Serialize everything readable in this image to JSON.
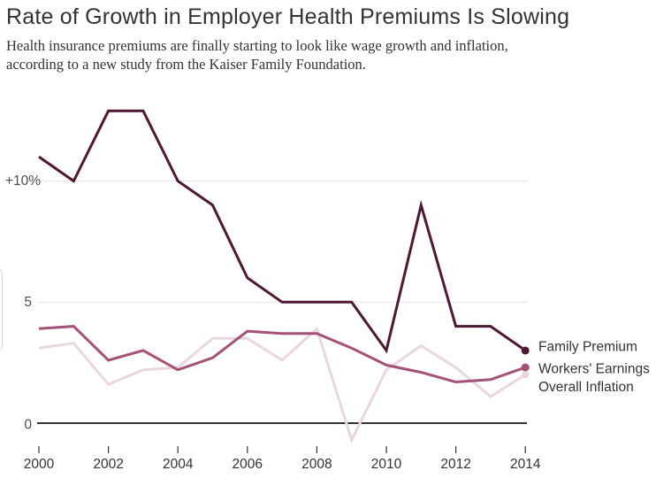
{
  "header": {
    "title": "Rate of Growth in Employer Health Premiums Is Slowing",
    "subtitle_line1": "Health insurance premiums are finally starting to look like wage growth and inflation,",
    "subtitle_line2": "according to a new study from the Kaiser Family Foundation."
  },
  "chart_data": {
    "type": "line",
    "title": "Rate of Growth in Employer Health Premiums Is Slowing",
    "x": [
      2000,
      2001,
      2002,
      2003,
      2004,
      2005,
      2006,
      2007,
      2008,
      2009,
      2010,
      2011,
      2012,
      2013,
      2014
    ],
    "series": [
      {
        "name": "Family Premium",
        "color": "#4e1733",
        "end_dot": true,
        "values": [
          11.0,
          10.0,
          12.9,
          12.9,
          10.0,
          9.0,
          6.0,
          5.0,
          5.0,
          5.0,
          3.0,
          9.0,
          4.0,
          4.0,
          3.0
        ]
      },
      {
        "name": "Workers' Earnings",
        "color": "#a65177",
        "end_dot": true,
        "values": [
          3.9,
          4.0,
          2.6,
          3.0,
          2.2,
          2.7,
          3.8,
          3.7,
          3.7,
          3.1,
          2.4,
          2.1,
          1.7,
          1.8,
          2.3
        ]
      },
      {
        "name": "Overall Inflation",
        "color": "#e9d6de",
        "end_dot": true,
        "values": [
          3.1,
          3.3,
          1.6,
          2.2,
          2.3,
          3.5,
          3.5,
          2.6,
          3.9,
          -0.7,
          2.2,
          3.2,
          2.3,
          1.1,
          2.0
        ]
      }
    ],
    "y_ticks": [
      {
        "value": 0,
        "label": "0"
      },
      {
        "value": 5,
        "label": "5"
      },
      {
        "value": 10,
        "label": "+10%"
      }
    ],
    "x_tick_labels": [
      "2000",
      "2002",
      "2004",
      "2006",
      "2008",
      "2010",
      "2012",
      "2014"
    ],
    "ylim": [
      -1,
      13.5
    ],
    "xlabel": "",
    "ylabel": "",
    "grid": "horizontal lines at 5 and +10%, dark baseline at 0",
    "legend_position": "labels to the right of 2014 line endpoints",
    "axis_colors": {
      "baseline": "#333333",
      "gridline": "#e4e4e4",
      "tick": "#333333",
      "y_label": "#4d4d4d",
      "x_label": "#333333",
      "legend_text": "#333333"
    }
  }
}
